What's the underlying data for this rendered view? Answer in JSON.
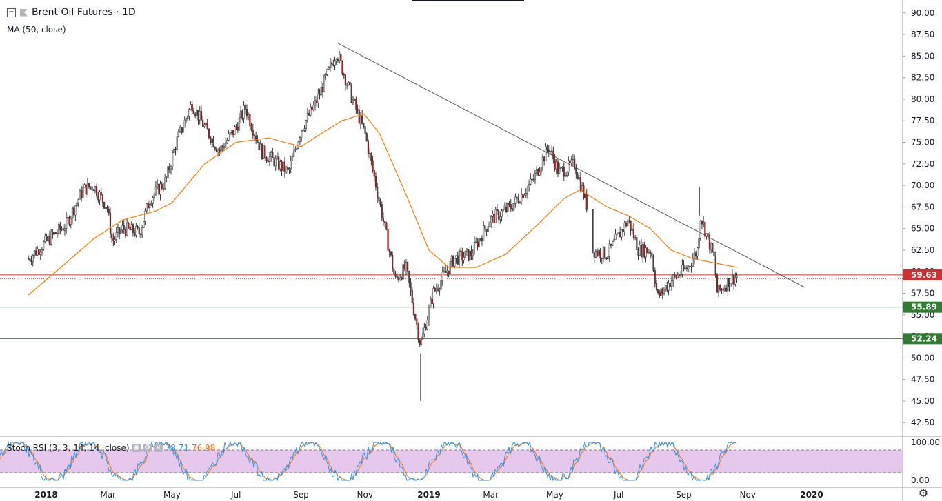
{
  "title": "Brent Oil Futures · 1D",
  "ma_label": "MA (50, close)",
  "rsi": {
    "label": "Stoch RSI (3, 3, 14, 14, close)",
    "k_value": "78.71",
    "d_value": "76.98"
  },
  "colors": {
    "up": "#ffffff",
    "down": "#b71c1c",
    "wick": "#333333",
    "ma": "#f57c00",
    "support": "#2e7d32",
    "resistance": "#d32f2f",
    "trend": "#555555",
    "rsi_k": "#2196f3",
    "rsi_d": "#ff6d00",
    "rsi_band": "#e1bee7"
  },
  "chart_data": {
    "type": "candlestick",
    "price_axis": {
      "min": 41.0,
      "max": 91.5,
      "ticks": [
        "90.00",
        "87.50",
        "85.00",
        "82.50",
        "80.00",
        "77.50",
        "75.00",
        "72.50",
        "70.00",
        "67.50",
        "65.00",
        "62.50",
        "60.00",
        "57.50",
        "55.00",
        "52.50",
        "50.00",
        "47.50",
        "45.00",
        "42.50"
      ]
    },
    "time_axis": {
      "labels": [
        "2018",
        "Mar",
        "May",
        "Jul",
        "Sep",
        "Nov",
        "2019",
        "Mar",
        "May",
        "Jul",
        "Sep",
        "Nov",
        "2020"
      ],
      "bold": [
        "2018",
        "2019",
        "2020"
      ]
    },
    "path": [
      [
        "2017-12-15",
        61.5
      ],
      [
        "2018-01-01",
        63.5
      ],
      [
        "2018-01-20",
        65.5
      ],
      [
        "2018-02-05",
        69.5
      ],
      [
        "2018-02-15",
        70.0
      ],
      [
        "2018-02-28",
        67.5
      ],
      [
        "2018-03-05",
        63.5
      ],
      [
        "2018-03-15",
        65.0
      ],
      [
        "2018-03-31",
        64.5
      ],
      [
        "2018-04-10",
        68.5
      ],
      [
        "2018-04-25",
        70.5
      ],
      [
        "2018-05-05",
        75.0
      ],
      [
        "2018-05-20",
        79.5
      ],
      [
        "2018-05-31",
        77.0
      ],
      [
        "2018-06-15",
        74.0
      ],
      [
        "2018-06-30",
        76.5
      ],
      [
        "2018-07-10",
        79.0
      ],
      [
        "2018-07-25",
        74.0
      ],
      [
        "2018-08-10",
        72.5
      ],
      [
        "2018-08-20",
        71.5
      ],
      [
        "2018-09-01",
        76.5
      ],
      [
        "2018-09-15",
        79.5
      ],
      [
        "2018-09-30",
        84.0
      ],
      [
        "2018-10-05",
        85.5
      ],
      [
        "2018-10-20",
        80.0
      ],
      [
        "2018-11-01",
        76.0
      ],
      [
        "2018-11-15",
        68.0
      ],
      [
        "2018-11-30",
        59.0
      ],
      [
        "2018-12-10",
        60.5
      ],
      [
        "2018-12-24",
        51.5
      ],
      [
        "2019-01-05",
        57.5
      ],
      [
        "2019-01-25",
        61.5
      ],
      [
        "2019-02-10",
        62.0
      ],
      [
        "2019-02-28",
        66.0
      ],
      [
        "2019-03-20",
        67.5
      ],
      [
        "2019-04-10",
        70.5
      ],
      [
        "2019-04-25",
        74.5
      ],
      [
        "2019-05-05",
        71.5
      ],
      [
        "2019-05-20",
        72.5
      ],
      [
        "2019-06-01",
        67.5
      ],
      [
        "2019-06-05",
        62.5
      ],
      [
        "2019-06-20",
        62.0
      ],
      [
        "2019-07-10",
        66.0
      ],
      [
        "2019-07-20",
        62.5
      ],
      [
        "2019-08-01",
        62.5
      ],
      [
        "2019-08-07",
        57.0
      ],
      [
        "2019-08-20",
        59.0
      ],
      [
        "2019-09-05",
        60.5
      ],
      [
        "2019-09-14",
        62.5
      ],
      [
        "2019-09-17",
        66.5
      ],
      [
        "2019-09-30",
        61.5
      ],
      [
        "2019-10-03",
        57.5
      ],
      [
        "2019-10-15",
        59.0
      ],
      [
        "2019-10-22",
        59.5
      ]
    ],
    "ma50": [
      [
        "2017-12-15",
        57.3
      ],
      [
        "2018-01-15",
        60.5
      ],
      [
        "2018-02-15",
        63.8
      ],
      [
        "2018-03-15",
        66.0
      ],
      [
        "2018-04-15",
        67.0
      ],
      [
        "2018-05-01",
        68.0
      ],
      [
        "2018-06-01",
        72.5
      ],
      [
        "2018-07-01",
        75.0
      ],
      [
        "2018-08-01",
        75.5
      ],
      [
        "2018-09-01",
        74.5
      ],
      [
        "2018-09-20",
        76.0
      ],
      [
        "2018-10-10",
        77.5
      ],
      [
        "2018-10-31",
        78.3
      ],
      [
        "2018-11-15",
        76.0
      ],
      [
        "2018-12-10",
        69.0
      ],
      [
        "2019-01-01",
        62.5
      ],
      [
        "2019-01-20",
        60.5
      ],
      [
        "2019-02-15",
        60.5
      ],
      [
        "2019-03-15",
        62.0
      ],
      [
        "2019-04-15",
        65.5
      ],
      [
        "2019-05-10",
        68.5
      ],
      [
        "2019-05-25",
        69.5
      ],
      [
        "2019-06-20",
        67.5
      ],
      [
        "2019-07-10",
        66.5
      ],
      [
        "2019-07-31",
        65.0
      ],
      [
        "2019-08-20",
        62.5
      ],
      [
        "2019-09-10",
        61.5
      ],
      [
        "2019-10-01",
        61.0
      ],
      [
        "2019-10-22",
        60.5
      ]
    ],
    "trendline": {
      "start": [
        "2018-10-06",
        86.5
      ],
      "end": [
        "2019-12-25",
        58.2
      ]
    },
    "hlines": [
      {
        "value": 59.63,
        "label": "59.63",
        "style": "resistance"
      },
      {
        "value": 59.2,
        "label": "",
        "style": "dotted"
      },
      {
        "value": 55.89,
        "label": "55.89",
        "style": "support"
      },
      {
        "value": 52.24,
        "label": "52.24",
        "style": "support"
      }
    ],
    "rsi_axis": {
      "min": 0,
      "max": 100,
      "ticks": [
        "100.00",
        "0.00"
      ],
      "upper_band": 80,
      "lower_band": 20
    }
  }
}
